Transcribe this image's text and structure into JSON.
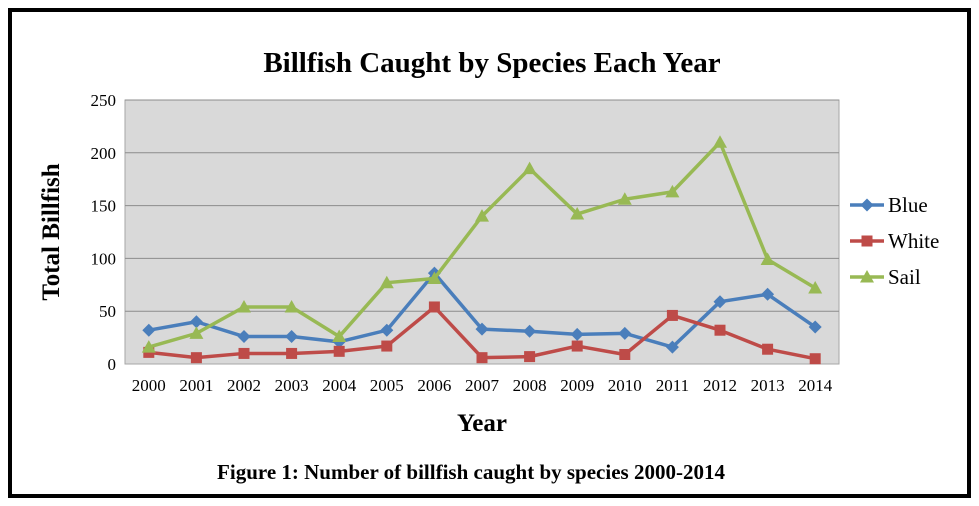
{
  "chart_data": {
    "type": "line",
    "title": "Billfish Caught by Species Each Year",
    "xlabel": "Year",
    "ylabel": "Total Billfish",
    "caption": "Figure 1: Number of billfish caught by species 2000-2014",
    "x": [
      "2000",
      "2001",
      "2002",
      "2003",
      "2004",
      "2005",
      "2006",
      "2007",
      "2008",
      "2009",
      "2010",
      "2011",
      "2012",
      "2013",
      "2014"
    ],
    "ylim": [
      0,
      250
    ],
    "yticks": [
      "0",
      "50",
      "100",
      "150",
      "200",
      "250"
    ],
    "grid": true,
    "legend_position": "right",
    "series": [
      {
        "name": "Blue",
        "marker": "diamond",
        "color": "#4a7ebb",
        "values": [
          32,
          40,
          26,
          26,
          21,
          32,
          86,
          33,
          31,
          28,
          29,
          16,
          59,
          66,
          35
        ]
      },
      {
        "name": "White",
        "marker": "square",
        "color": "#be4b48",
        "values": [
          11,
          6,
          10,
          10,
          12,
          17,
          54,
          6,
          7,
          17,
          9,
          46,
          32,
          14,
          5
        ]
      },
      {
        "name": "Sail",
        "marker": "triangle",
        "color": "#98b954",
        "values": [
          16,
          29,
          54,
          54,
          26,
          77,
          81,
          140,
          185,
          142,
          156,
          163,
          210,
          99,
          72
        ]
      }
    ]
  }
}
